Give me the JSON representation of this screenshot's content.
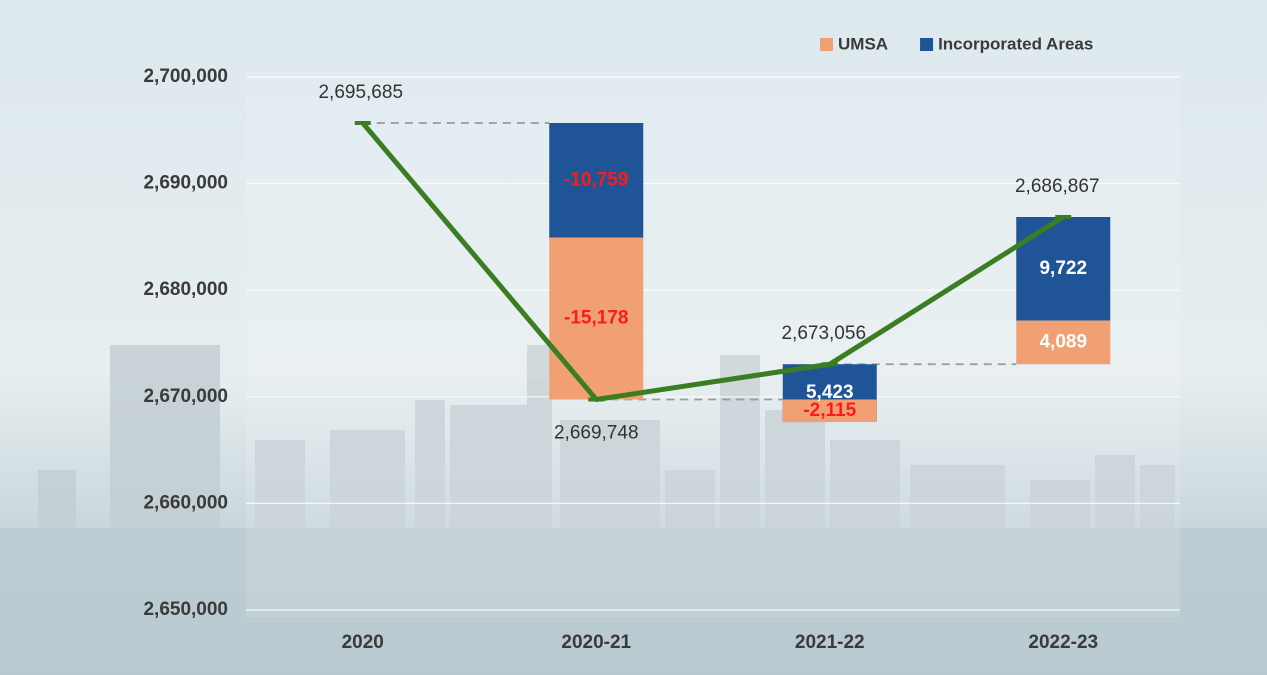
{
  "chart_data": {
    "type": "waterfall",
    "categories": [
      "2020",
      "2020-21",
      "2021-22",
      "2022-23"
    ],
    "series": [
      {
        "name": "UMSA",
        "color": "#f0a072",
        "values": [
          null,
          -15178,
          -2115,
          4089
        ],
        "value_labels": [
          null,
          "-15,178",
          "-2,115",
          "4,089"
        ]
      },
      {
        "name": "Incorporated Areas",
        "color": "#1f5597",
        "values": [
          null,
          -10759,
          5423,
          9722
        ],
        "value_labels": [
          null,
          "-10,759",
          "5,423",
          "9,722"
        ]
      }
    ],
    "totals": {
      "color": "#3a7d22",
      "values": [
        2695685,
        2669748,
        2673056,
        2686867
      ],
      "value_labels": [
        "2,695,685",
        "2,669,748",
        "2,673,056",
        "2,686,867"
      ]
    },
    "ylim": [
      2650000,
      2700000
    ],
    "yticks": [
      {
        "value": 2650000,
        "label": "2,650,000"
      },
      {
        "value": 2660000,
        "label": "2,660,000"
      },
      {
        "value": 2670000,
        "label": "2,670,000"
      },
      {
        "value": 2680000,
        "label": "2,680,000"
      },
      {
        "value": 2690000,
        "label": "2,690,000"
      },
      {
        "value": 2700000,
        "label": "2,700,000"
      }
    ],
    "grid": true,
    "legend": "top-right"
  }
}
